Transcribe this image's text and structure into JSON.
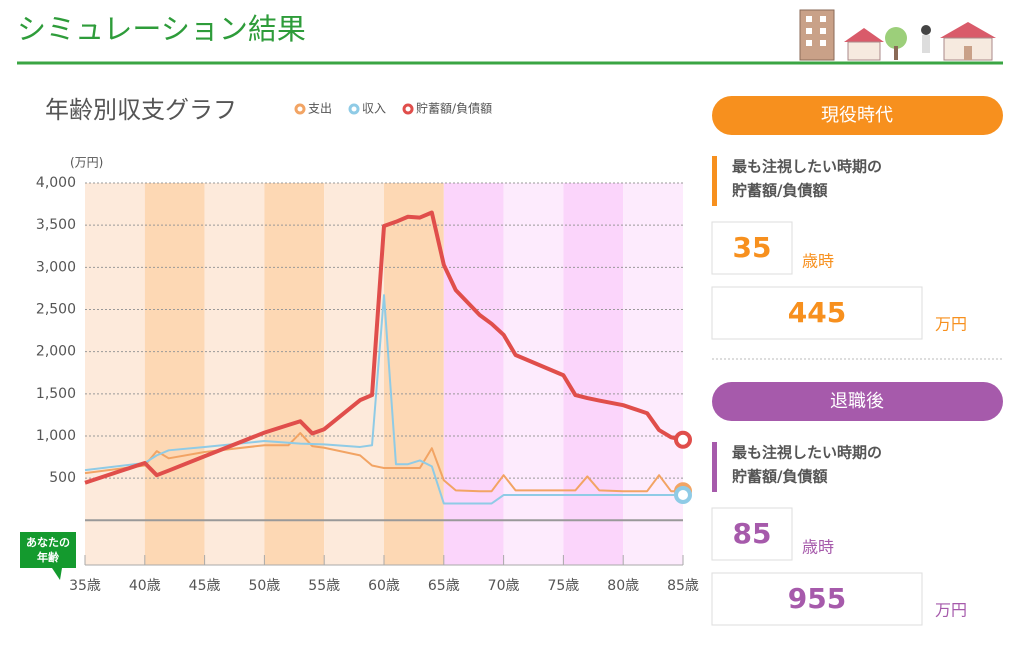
{
  "header": {
    "title": "シミュレーション結果"
  },
  "chart_data": {
    "type": "line",
    "title": "年齢別収支グラフ",
    "y_unit": "(万円)",
    "callout": [
      "あなたの",
      "年齢"
    ],
    "legend": "top",
    "grid": true,
    "x": [
      35,
      40,
      41,
      42,
      45,
      50,
      52,
      53,
      54,
      55,
      58,
      59,
      60,
      61,
      62,
      63,
      64,
      65,
      66,
      68,
      69,
      70,
      71,
      75,
      76,
      77,
      78,
      80,
      82,
      83,
      84,
      85
    ],
    "series": [
      {
        "name": "支出",
        "color": "#f2a464",
        "values": [
          560,
          650,
          820,
          735,
          810,
          890,
          890,
          1035,
          880,
          860,
          770,
          650,
          620,
          620,
          620,
          620,
          855,
          475,
          355,
          345,
          345,
          535,
          355,
          355,
          355,
          520,
          355,
          345,
          345,
          535,
          345,
          345
        ]
      },
      {
        "name": "収入",
        "color": "#8fcbe6",
        "values": [
          595,
          680,
          770,
          830,
          870,
          940,
          920,
          910,
          905,
          900,
          870,
          890,
          2670,
          665,
          665,
          710,
          640,
          200,
          200,
          200,
          200,
          300,
          300,
          300,
          300,
          300,
          300,
          300,
          300,
          300,
          300,
          300
        ]
      },
      {
        "name": "貯蓄額/負債額",
        "color": "#e04e4b",
        "values": [
          445,
          680,
          535,
          590,
          760,
          1040,
          1130,
          1175,
          1030,
          1080,
          1425,
          1485,
          3490,
          3540,
          3600,
          3590,
          3650,
          3030,
          2730,
          2435,
          2330,
          2200,
          1960,
          1720,
          1485,
          1450,
          1420,
          1365,
          1270,
          1070,
          985,
          955
        ]
      }
    ],
    "xlim": [
      35,
      85
    ],
    "xticks": [
      {
        "value": 35,
        "label": "35歳"
      },
      {
        "value": 40,
        "label": "40歳"
      },
      {
        "value": 45,
        "label": "45歳"
      },
      {
        "value": 50,
        "label": "50歳"
      },
      {
        "value": 55,
        "label": "55歳"
      },
      {
        "value": 60,
        "label": "60歳"
      },
      {
        "value": 65,
        "label": "65歳"
      },
      {
        "value": 70,
        "label": "70歳"
      },
      {
        "value": 75,
        "label": "75歳"
      },
      {
        "value": 80,
        "label": "80歳"
      },
      {
        "value": 85,
        "label": "85歳"
      }
    ],
    "band_colors": [
      "#fdeadb",
      "#fdd8b4",
      "#fdeadb",
      "#fdd8b4",
      "#fdeadb",
      "#fdd8b4",
      "#fbd5fb",
      "#fdebfd",
      "#fbd5fb",
      "#fdebfd"
    ],
    "ylim": [
      -530,
      4000
    ],
    "yticks": [
      {
        "value": 500,
        "label": "500"
      },
      {
        "value": 1000,
        "label": "1,000"
      },
      {
        "value": 1500,
        "label": "1,500"
      },
      {
        "value": 2000,
        "label": "2,000"
      },
      {
        "value": 2500,
        "label": "2,500"
      },
      {
        "value": 3000,
        "label": "3,000"
      },
      {
        "value": 3500,
        "label": "3,500"
      },
      {
        "value": 4000,
        "label": "4,000"
      }
    ]
  },
  "panels": [
    {
      "title": "現役時代",
      "color": "#f7901e",
      "note": [
        "最も注視したい時期の",
        "貯蓄額/負債額"
      ],
      "age": 35,
      "age_unit": "歳時",
      "amount": 445,
      "amount_unit": "万円"
    },
    {
      "title": "退職後",
      "color": "#a65aab",
      "note": [
        "最も注視したい時期の",
        "貯蓄額/負債額"
      ],
      "age": 85,
      "age_unit": "歳時",
      "amount": 955,
      "amount_unit": "万円"
    }
  ]
}
